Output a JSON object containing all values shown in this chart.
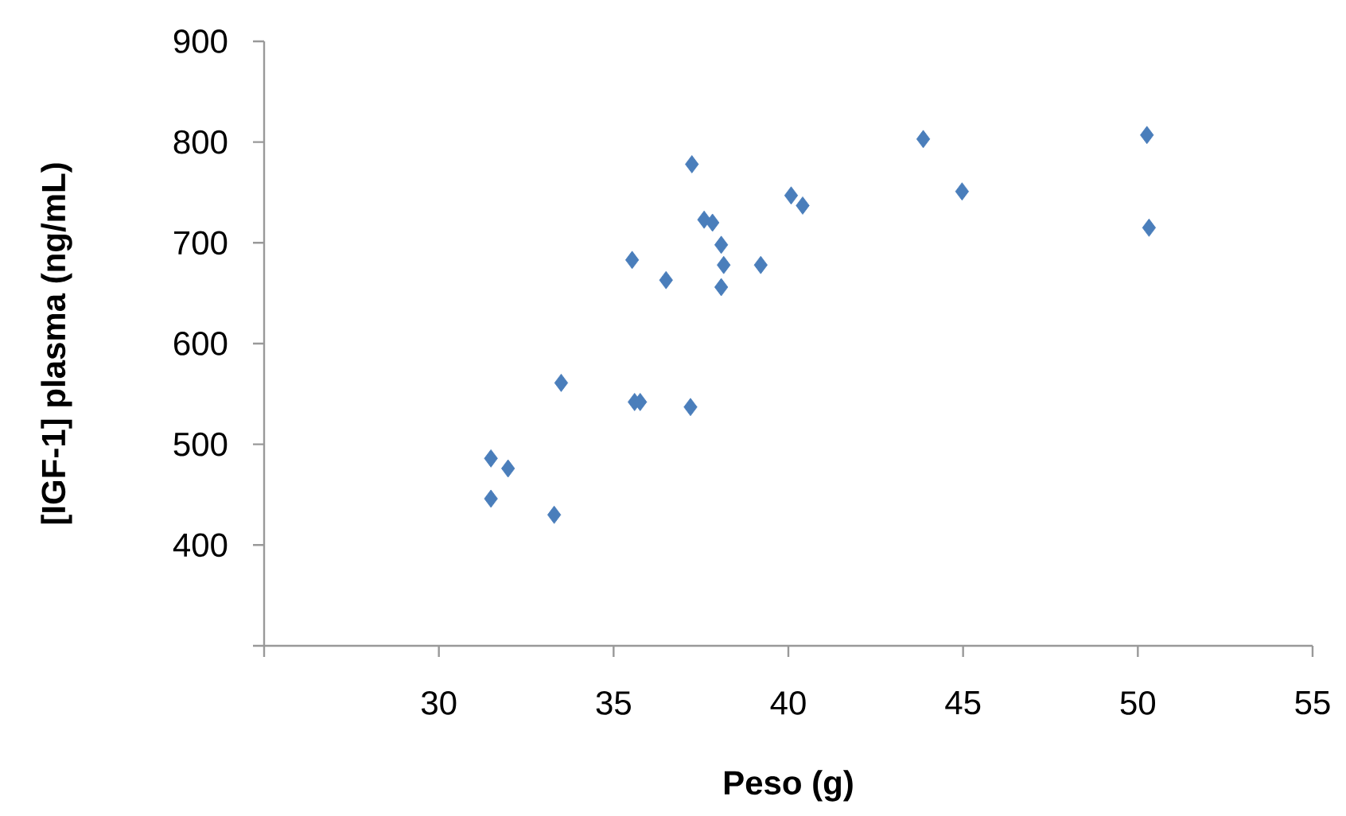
{
  "chart_data": {
    "type": "scatter",
    "xlabel": "Peso (g)",
    "ylabel": "[IGF-1] plasma (ng/mL)",
    "marker": "diamond",
    "grid": false,
    "xlim": [
      25,
      55
    ],
    "xticks": [
      {
        "value": 25,
        "label": null
      },
      30,
      35,
      40,
      45,
      50,
      55
    ],
    "ylim": [
      300,
      900
    ],
    "yticks": [
      {
        "value": 300,
        "label": null
      },
      400,
      500,
      600,
      700,
      800,
      900
    ],
    "series": [
      {
        "color": "#4a7ebb",
        "x": [
          37.24,
          35.53,
          36.5,
          37.59,
          37.83,
          38.08,
          38.15,
          38.08,
          39.21,
          33.5,
          35.6,
          35.76,
          37.2,
          31.49,
          31.98,
          31.49,
          33.3,
          40.08,
          40.41,
          43.86,
          44.97,
          50.26,
          50.32
        ],
        "values": [
          778,
          683,
          663,
          723,
          720,
          698,
          678,
          656,
          678,
          561,
          542,
          542,
          537,
          486,
          476,
          446,
          430,
          747,
          737,
          803,
          751,
          807,
          715
        ]
      }
    ]
  }
}
